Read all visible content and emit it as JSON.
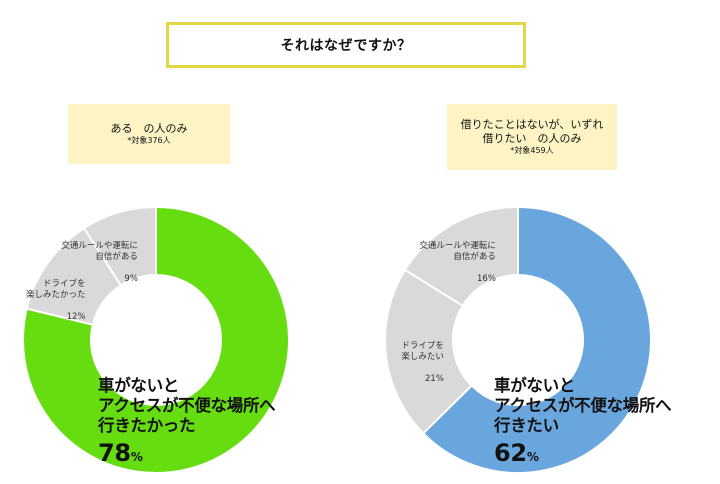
{
  "question": "それはなぜですか？",
  "conditions": {
    "left": {
      "line1": "ある　の人のみ",
      "target": "*対象376人"
    },
    "right": {
      "line1": "借りたことはないが、いずれ",
      "line2": "借りたい　の人のみ",
      "target": "*対象459人"
    }
  },
  "colors": {
    "accent_left": "#66dd11",
    "accent_right": "#6aa6de",
    "other": "#d9d9d9"
  },
  "chart_data": [
    {
      "type": "pie",
      "donut": true,
      "slices": [
        {
          "label": "車がないと\nアクセスが不便な場所へ\n行きたかった",
          "value": 78,
          "unit": "%"
        },
        {
          "label": "ドライブを\n楽しみたかった",
          "value": 12,
          "unit": "%"
        },
        {
          "label": "交通ルールや運転に\n自信がある",
          "value": 9,
          "unit": "%"
        }
      ]
    },
    {
      "type": "pie",
      "donut": true,
      "slices": [
        {
          "label": "車がないと\nアクセスが不便な場所へ\n行きたい",
          "value": 62,
          "unit": "%"
        },
        {
          "label": "ドライブを\n楽しみたい",
          "value": 21,
          "unit": "%"
        },
        {
          "label": "交通ルールや運転に\n自信がある",
          "value": 16,
          "unit": "%"
        }
      ]
    }
  ]
}
